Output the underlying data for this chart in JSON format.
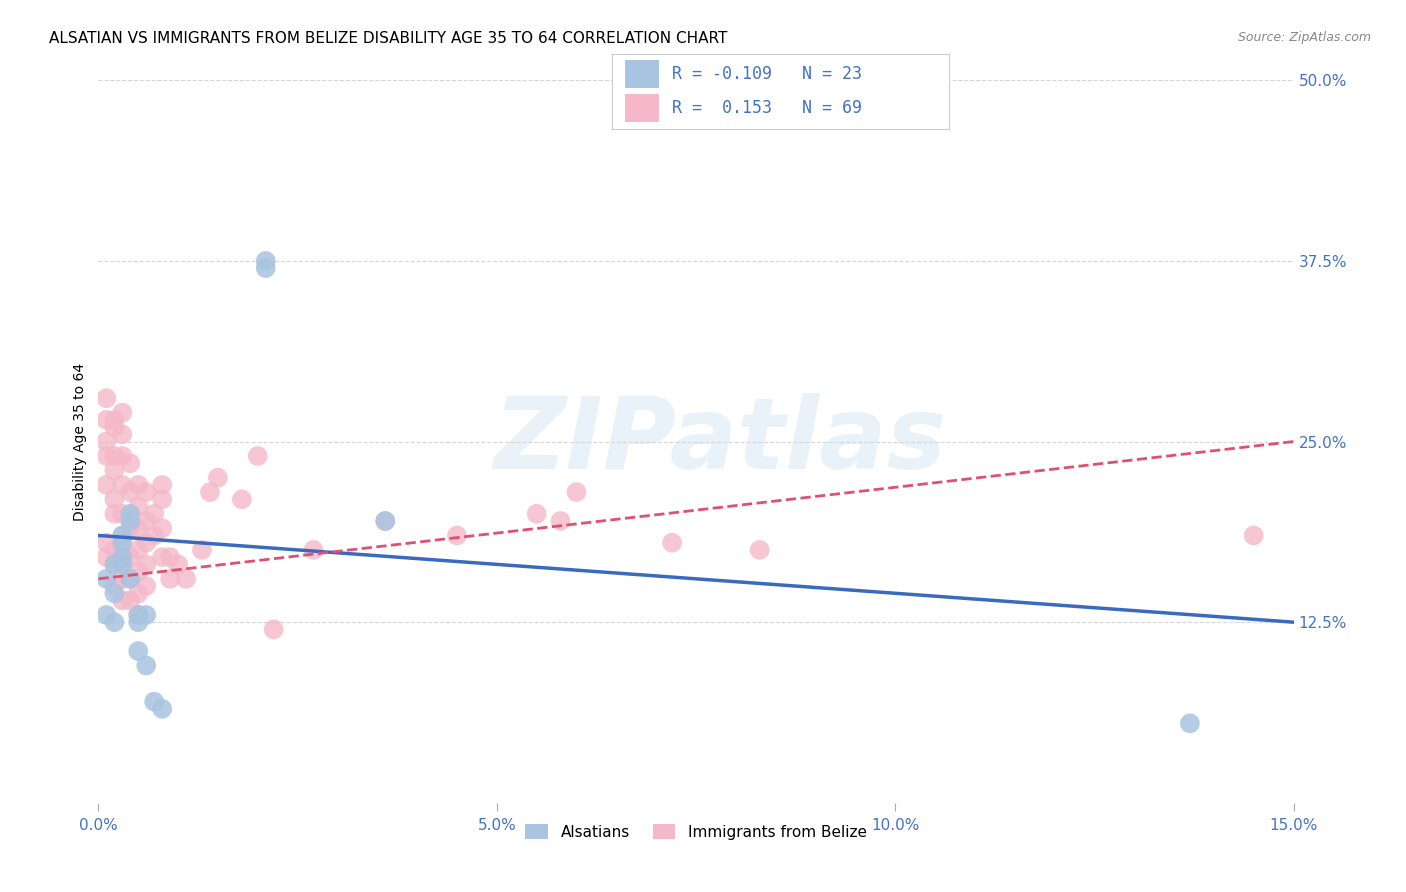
{
  "title": "ALSATIAN VS IMMIGRANTS FROM BELIZE DISABILITY AGE 35 TO 64 CORRELATION CHART",
  "source": "Source: ZipAtlas.com",
  "ylabel": "Disability Age 35 to 64",
  "xlim": [
    0,
    0.15
  ],
  "ylim": [
    0,
    0.5
  ],
  "xticks": [
    0.0,
    0.05,
    0.1,
    0.15
  ],
  "xticklabels": [
    "0.0%",
    "5.0%",
    "10.0%",
    "15.0%"
  ],
  "yticks": [
    0.0,
    0.125,
    0.25,
    0.375,
    0.5
  ],
  "yticklabels": [
    "",
    "12.5%",
    "25.0%",
    "37.5%",
    "50.0%"
  ],
  "alsatian_color": "#a8c4e0",
  "belize_color": "#f4b8c8",
  "alsatian_line_color": "#3a6abf",
  "belize_line_color": "#e05070",
  "watermark": "ZIPatlas",
  "alsatian_x": [
    0.001,
    0.001,
    0.002,
    0.002,
    0.002,
    0.003,
    0.003,
    0.003,
    0.003,
    0.004,
    0.004,
    0.004,
    0.005,
    0.005,
    0.005,
    0.006,
    0.006,
    0.007,
    0.008,
    0.021,
    0.021,
    0.036,
    0.137
  ],
  "alsatian_y": [
    0.155,
    0.13,
    0.145,
    0.165,
    0.125,
    0.185,
    0.18,
    0.17,
    0.165,
    0.2,
    0.195,
    0.155,
    0.13,
    0.125,
    0.105,
    0.13,
    0.095,
    0.07,
    0.065,
    0.375,
    0.37,
    0.195,
    0.055
  ],
  "belize_x": [
    0.001,
    0.001,
    0.001,
    0.001,
    0.001,
    0.001,
    0.001,
    0.002,
    0.002,
    0.002,
    0.002,
    0.002,
    0.002,
    0.002,
    0.002,
    0.002,
    0.003,
    0.003,
    0.003,
    0.003,
    0.003,
    0.003,
    0.003,
    0.003,
    0.003,
    0.003,
    0.004,
    0.004,
    0.004,
    0.004,
    0.004,
    0.004,
    0.005,
    0.005,
    0.005,
    0.005,
    0.005,
    0.005,
    0.005,
    0.006,
    0.006,
    0.006,
    0.006,
    0.006,
    0.007,
    0.007,
    0.008,
    0.008,
    0.008,
    0.008,
    0.009,
    0.009,
    0.01,
    0.011,
    0.013,
    0.014,
    0.015,
    0.018,
    0.02,
    0.022,
    0.027,
    0.036,
    0.045,
    0.055,
    0.058,
    0.06,
    0.072,
    0.083,
    0.145
  ],
  "belize_y": [
    0.28,
    0.265,
    0.25,
    0.24,
    0.22,
    0.18,
    0.17,
    0.265,
    0.26,
    0.24,
    0.23,
    0.21,
    0.2,
    0.175,
    0.165,
    0.15,
    0.27,
    0.255,
    0.24,
    0.22,
    0.2,
    0.185,
    0.175,
    0.165,
    0.155,
    0.14,
    0.235,
    0.215,
    0.19,
    0.17,
    0.155,
    0.14,
    0.22,
    0.205,
    0.19,
    0.175,
    0.16,
    0.145,
    0.13,
    0.215,
    0.195,
    0.18,
    0.165,
    0.15,
    0.2,
    0.185,
    0.22,
    0.21,
    0.19,
    0.17,
    0.17,
    0.155,
    0.165,
    0.155,
    0.175,
    0.215,
    0.225,
    0.21,
    0.24,
    0.12,
    0.175,
    0.195,
    0.185,
    0.2,
    0.195,
    0.215,
    0.18,
    0.175,
    0.185
  ],
  "grid_color": "#cccccc",
  "bg_color": "#ffffff",
  "tick_color": "#4472c4",
  "title_fontsize": 11,
  "label_fontsize": 10,
  "tick_fontsize": 11,
  "alsatian_trend_x": [
    0.0,
    0.15
  ],
  "alsatian_trend_y": [
    0.185,
    0.125
  ],
  "belize_trend_x": [
    0.0,
    0.15
  ],
  "belize_trend_y": [
    0.155,
    0.25
  ]
}
